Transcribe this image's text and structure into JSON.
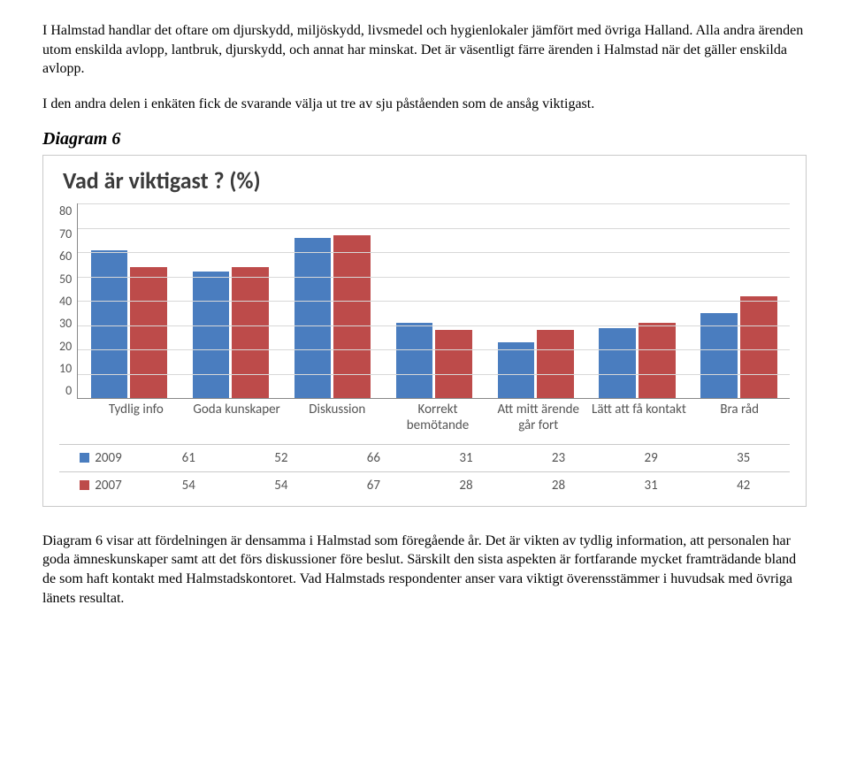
{
  "paragraphs": {
    "p1": "I Halmstad handlar det oftare om djurskydd, miljöskydd, livsmedel och hygienlokaler jämfört med övriga Halland. Alla andra ärenden utom enskilda avlopp, lantbruk, djurskydd, och annat har minskat. Det är väsentligt färre ärenden i Halmstad när det gäller enskilda avlopp.",
    "p2": "I den andra delen i enkäten fick de svarande välja ut tre av sju påståenden som de ansåg viktigast.",
    "p3": "Diagram 6 visar att fördelningen är densamma i Halmstad som föregående år. Det är vikten av tydlig information, att personalen har goda ämneskunskaper samt att det förs diskussioner före beslut. Särskilt den sista aspekten är fortfarande mycket framträdande bland de som haft kontakt med Halmstadskontoret. Vad Halmstads respondenter anser vara viktigt överensstämmer i huvudsak med övriga länets resultat."
  },
  "heading": "Diagram 6",
  "chart": {
    "type": "bar",
    "title": "Vad är viktigast ? (%)",
    "ylim": [
      0,
      80
    ],
    "ytick_step": 10,
    "yticks": [
      "80",
      "70",
      "60",
      "50",
      "40",
      "30",
      "20",
      "10",
      "0"
    ],
    "categories": [
      "Tydlig info",
      "Goda kunskaper",
      "Diskussion",
      "Korrekt bemötande",
      "Att mitt ärende går fort",
      "Lätt att få kontakt",
      "Bra råd"
    ],
    "series": [
      {
        "name": "2009",
        "color": "#4a7dbf",
        "values": [
          61,
          52,
          66,
          31,
          23,
          29,
          35
        ]
      },
      {
        "name": "2007",
        "color": "#bd4b4a",
        "values": [
          54,
          54,
          67,
          28,
          28,
          31,
          42
        ]
      }
    ],
    "background_color": "#ffffff",
    "grid_color": "#d8d8d8",
    "border_color": "#c9c9c9",
    "axis_color": "#888888",
    "text_color": "#555555",
    "title_fontsize": 26,
    "label_fontsize": 15,
    "bar_width": 0.42
  }
}
